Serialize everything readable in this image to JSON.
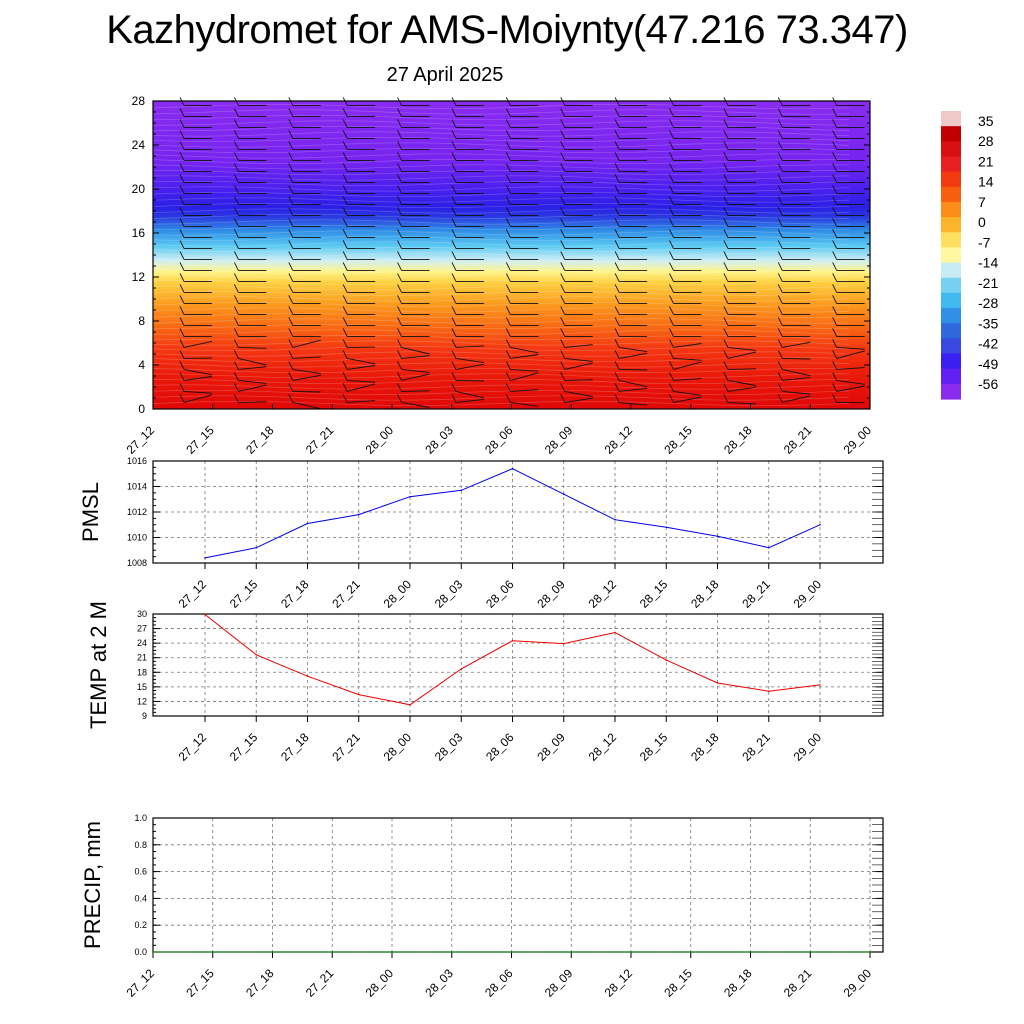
{
  "title": "Kazhydromet for AMS-Moiynty(47.216 73.347)",
  "subtitle": "27 April 2025",
  "colors": {
    "pmsl_line": "#0000ee",
    "temp_line": "#ee0000",
    "precip_line": "#007700"
  },
  "chart_data": [
    {
      "type": "heatmap",
      "name": "upper-air-cross-section",
      "x": [
        "27_12",
        "27_15",
        "27_18",
        "27_21",
        "28_00",
        "28_03",
        "28_06",
        "28_09",
        "28_12",
        "28_15",
        "28_18",
        "28_21",
        "29_00"
      ],
      "yticks": [
        0,
        4,
        8,
        12,
        16,
        20,
        24,
        28
      ],
      "ylim": [
        0,
        28
      ],
      "colorbar_labels": [
        "35",
        "28",
        "21",
        "14",
        "7",
        "0",
        "-7",
        "-14",
        "-21",
        "-28",
        "-35",
        "-42",
        "-49",
        "-56"
      ],
      "colorbar_colors": [
        "#f0c8c8",
        "#c00000",
        "#d81010",
        "#e82020",
        "#f23a10",
        "#f86010",
        "#fb8c18",
        "#fcb42a",
        "#fde060",
        "#fff8a0",
        "#c8ecf4",
        "#78d0f0",
        "#40b8f0",
        "#3090e8",
        "#3068e0",
        "#3848e0",
        "#3a20f0",
        "#6020f0",
        "#8a2cf0"
      ],
      "level_colors": [
        {
          "y": 0,
          "color": "#e00808"
        },
        {
          "y": 3,
          "color": "#ea1a0a"
        },
        {
          "y": 5.5,
          "color": "#f43812"
        },
        {
          "y": 7.5,
          "color": "#f86a14"
        },
        {
          "y": 9.5,
          "color": "#fb9a1e"
        },
        {
          "y": 11.5,
          "color": "#fdd040"
        },
        {
          "y": 12.5,
          "color": "#fff48a"
        },
        {
          "y": 13.5,
          "color": "#cfeef4"
        },
        {
          "y": 14.8,
          "color": "#5ccaf2"
        },
        {
          "y": 16.2,
          "color": "#2f8ee6"
        },
        {
          "y": 17.5,
          "color": "#2a38e0"
        },
        {
          "y": 18.3,
          "color": "#2a20e6"
        },
        {
          "y": 20,
          "color": "#4a20ee"
        },
        {
          "y": 22.5,
          "color": "#7624f0"
        },
        {
          "y": 28,
          "color": "#8a2cf0"
        }
      ]
    },
    {
      "type": "line",
      "name": "pmsl",
      "ylabel": "PMSL",
      "x": [
        "27_12",
        "27_15",
        "27_18",
        "27_21",
        "28_00",
        "28_03",
        "28_06",
        "28_09",
        "28_12",
        "28_15",
        "28_18",
        "28_21",
        "29_00"
      ],
      "values": [
        1008.4,
        1009.2,
        1011.1,
        1011.8,
        1013.2,
        1013.7,
        1015.4,
        1013.4,
        1011.4,
        1010.8,
        1010.1,
        1009.2,
        1011.0
      ],
      "yticks": [
        1008,
        1010,
        1012,
        1014,
        1016
      ],
      "ylim": [
        1008,
        1016
      ]
    },
    {
      "type": "line",
      "name": "temp-2m",
      "ylabel": "TEMP at 2 M",
      "x": [
        "27_12",
        "27_15",
        "27_18",
        "27_21",
        "28_00",
        "28_03",
        "28_06",
        "28_09",
        "28_12",
        "28_15",
        "28_18",
        "28_21",
        "29_00"
      ],
      "values": [
        29.9,
        21.6,
        17.2,
        13.4,
        11.3,
        18.7,
        24.5,
        23.9,
        26.2,
        20.5,
        15.8,
        14.1,
        15.4
      ],
      "yticks": [
        9,
        12,
        15,
        18,
        21,
        24,
        27,
        30
      ],
      "ylim": [
        9,
        30
      ]
    },
    {
      "type": "line",
      "name": "precip",
      "ylabel": "PRECIP, mm",
      "x": [
        "27_12",
        "27_15",
        "27_18",
        "27_21",
        "28_00",
        "28_03",
        "28_06",
        "28_09",
        "28_12",
        "28_15",
        "28_18",
        "28_21",
        "29_00"
      ],
      "values": [
        0,
        0,
        0,
        0,
        0,
        0,
        0,
        0,
        0,
        0,
        0,
        0,
        0
      ],
      "yticks": [
        "0.0",
        "0.2",
        "0.4",
        "0.6",
        "0.8",
        "1.0"
      ],
      "ylim": [
        0,
        1
      ]
    }
  ]
}
